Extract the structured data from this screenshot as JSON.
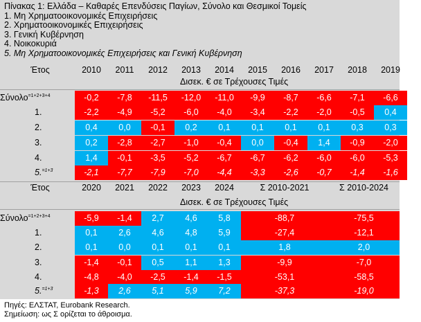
{
  "title_lines": [
    "Πίνακας 1: Ελλάδα – Καθαρές Επενδύσεις Παγίων, Σύνολο και Θεσμικοί Τομείς",
    "1. Μη Χρηματοοικονομικές Επιχειρήσεις",
    "2. Χρηματοοικονομικές Επιχειρήσεις",
    "3. Γενική Κυβέρνηση",
    "4. Νοικοκυριά",
    "5. Μη Χρηματοοικονομικές Επιχειρήσεις και Γενική Κυβέρνηση"
  ],
  "colors": {
    "red": "#ff0000",
    "blue": "#00b0f0",
    "panel": "#d9d9d9"
  },
  "table1": {
    "year_label": "Έτος",
    "years": [
      "2010",
      "2011",
      "2012",
      "2013",
      "2014",
      "2015",
      "2016",
      "2017",
      "2018",
      "2019"
    ],
    "units": "Δισεκ. € σε Τρέχουσες Τιμές",
    "rows": [
      {
        "label": "Σύνολο",
        "sup": "=1+2+3+4",
        "italic": false,
        "values": [
          "-0,2",
          "-7,8",
          "-11,5",
          "-12,0",
          "-11,0",
          "-9,9",
          "-8,7",
          "-6,6",
          "-7,1",
          "-6,6"
        ],
        "colors": [
          "red",
          "red",
          "red",
          "red",
          "red",
          "red",
          "red",
          "red",
          "red",
          "red"
        ]
      },
      {
        "label": "1.",
        "sup": "",
        "italic": false,
        "values": [
          "-2,2",
          "-4,9",
          "-5,2",
          "-6,0",
          "-4,0",
          "-3,4",
          "-2,2",
          "-2,0",
          "-0,5",
          "0,4"
        ],
        "colors": [
          "red",
          "red",
          "red",
          "red",
          "red",
          "red",
          "red",
          "red",
          "red",
          "blue"
        ]
      },
      {
        "label": "2.",
        "sup": "",
        "italic": false,
        "values": [
          "0,4",
          "0,0",
          "-0,1",
          "0,2",
          "0,1",
          "0,1",
          "0,1",
          "0,1",
          "0,3",
          "0,3"
        ],
        "colors": [
          "blue",
          "blue",
          "red",
          "blue",
          "blue",
          "blue",
          "blue",
          "blue",
          "blue",
          "blue"
        ]
      },
      {
        "label": "3.",
        "sup": "",
        "italic": false,
        "values": [
          "0,2",
          "-2,8",
          "-2,7",
          "-1,0",
          "-0,4",
          "0,0",
          "-0,4",
          "1,4",
          "-0,9",
          "-2,0"
        ],
        "colors": [
          "blue",
          "red",
          "red",
          "red",
          "red",
          "blue",
          "red",
          "blue",
          "red",
          "red"
        ]
      },
      {
        "label": "4.",
        "sup": "",
        "italic": false,
        "values": [
          "1,4",
          "-0,1",
          "-3,5",
          "-5,2",
          "-6,7",
          "-6,7",
          "-6,2",
          "-6,0",
          "-6,0",
          "-5,3"
        ],
        "colors": [
          "blue",
          "red",
          "red",
          "red",
          "red",
          "red",
          "red",
          "red",
          "red",
          "red"
        ]
      },
      {
        "label": "5.",
        "sup": "=1+3",
        "italic": true,
        "values": [
          "-2,1",
          "-7,7",
          "-7,9",
          "-7,0",
          "-4,4",
          "-3,3",
          "-2,6",
          "-0,7",
          "-1,4",
          "-1,6"
        ],
        "colors": [
          "red",
          "red",
          "red",
          "red",
          "red",
          "red",
          "red",
          "red",
          "red",
          "red"
        ]
      }
    ]
  },
  "table2": {
    "year_label": "Έτος",
    "years": [
      "2020",
      "2021",
      "2022",
      "2023",
      "2024"
    ],
    "sum_headers": [
      "Σ 2010-2021",
      "Σ 2010-2024"
    ],
    "units": "Δισεκ. € σε Τρέχουσες Τιμές",
    "rows": [
      {
        "label": "Σύνολο",
        "sup": "=1+2+3+4",
        "italic": false,
        "values": [
          "-5,9",
          "-1,4",
          "2,7",
          "4,6",
          "5,8"
        ],
        "colors": [
          "red",
          "red",
          "blue",
          "blue",
          "blue"
        ],
        "sums": [
          "-88,7",
          "-75,5"
        ],
        "sum_colors": [
          "red",
          "red"
        ]
      },
      {
        "label": "1.",
        "sup": "",
        "italic": false,
        "values": [
          "0,1",
          "2,6",
          "4,6",
          "4,8",
          "5,9"
        ],
        "colors": [
          "blue",
          "blue",
          "blue",
          "blue",
          "blue"
        ],
        "sums": [
          "-27,4",
          "-12,1"
        ],
        "sum_colors": [
          "red",
          "red"
        ]
      },
      {
        "label": "2.",
        "sup": "",
        "italic": false,
        "values": [
          "0,1",
          "0,0",
          "0,1",
          "0,1",
          "0,1"
        ],
        "colors": [
          "blue",
          "blue",
          "blue",
          "blue",
          "blue"
        ],
        "sums": [
          "1,8",
          "2,0"
        ],
        "sum_colors": [
          "blue",
          "blue"
        ]
      },
      {
        "label": "3.",
        "sup": "",
        "italic": false,
        "values": [
          "-1,4",
          "-0,1",
          "0,5",
          "1,1",
          "1,3"
        ],
        "colors": [
          "red",
          "red",
          "blue",
          "blue",
          "blue"
        ],
        "sums": [
          "-9,9",
          "-7,0"
        ],
        "sum_colors": [
          "red",
          "red"
        ]
      },
      {
        "label": "4.",
        "sup": "",
        "italic": false,
        "values": [
          "-4,8",
          "-4,0",
          "-2,5",
          "-1,4",
          "-1,5"
        ],
        "colors": [
          "red",
          "red",
          "red",
          "red",
          "red"
        ],
        "sums": [
          "-53,1",
          "-58,5"
        ],
        "sum_colors": [
          "red",
          "red"
        ]
      },
      {
        "label": "5.",
        "sup": "=1+3",
        "italic": true,
        "values": [
          "-1,3",
          "2,6",
          "5,1",
          "5,9",
          "7,2"
        ],
        "colors": [
          "red",
          "blue",
          "blue",
          "blue",
          "blue"
        ],
        "sums": [
          "-37,3",
          "-19,0"
        ],
        "sum_colors": [
          "red",
          "red"
        ]
      }
    ]
  },
  "footer": {
    "source": "Πηγές: ΕΛΣΤΑΤ, Eurobank Research.",
    "note": "Σημείωση: ως Σ ορίζεται το άθροισμα."
  }
}
